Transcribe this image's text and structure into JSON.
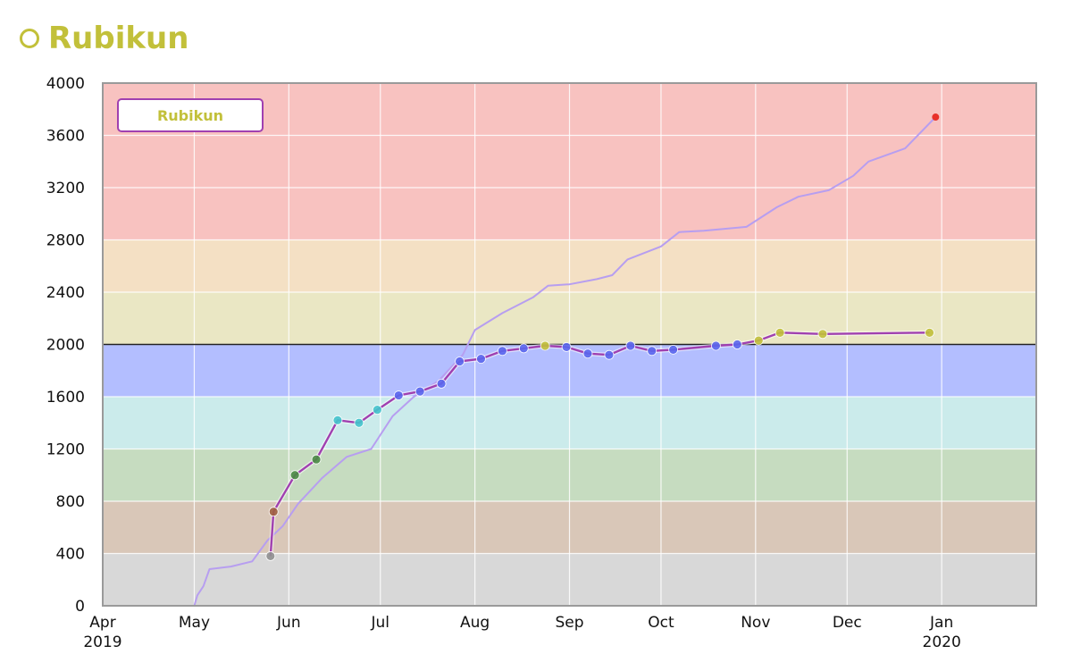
{
  "header": {
    "user_name": "Rubikun",
    "user_icon": "circle-outline-icon",
    "color": "#c2c03a"
  },
  "chart_data": {
    "type": "line",
    "title": "",
    "xlabel": "",
    "ylabel": "",
    "ylim": [
      0,
      4000
    ],
    "xlim": [
      "2019-04-01",
      "2020-02-01"
    ],
    "yticks": [
      0,
      400,
      800,
      1200,
      1600,
      2000,
      2400,
      2800,
      3200,
      3600,
      4000
    ],
    "xticks": [
      {
        "date": "2019-04-01",
        "label": "Apr",
        "sublabel": "2019"
      },
      {
        "date": "2019-05-01",
        "label": "May",
        "sublabel": ""
      },
      {
        "date": "2019-06-01",
        "label": "Jun",
        "sublabel": ""
      },
      {
        "date": "2019-07-01",
        "label": "Jul",
        "sublabel": ""
      },
      {
        "date": "2019-08-01",
        "label": "Aug",
        "sublabel": ""
      },
      {
        "date": "2019-09-01",
        "label": "Sep",
        "sublabel": ""
      },
      {
        "date": "2019-10-01",
        "label": "Oct",
        "sublabel": ""
      },
      {
        "date": "2019-11-01",
        "label": "Nov",
        "sublabel": ""
      },
      {
        "date": "2019-12-01",
        "label": "Dec",
        "sublabel": ""
      },
      {
        "date": "2020-01-01",
        "label": "Jan",
        "sublabel": "2020"
      }
    ],
    "grid": true,
    "legend": {
      "placement": "top-left",
      "entries": [
        "Rubikun"
      ]
    },
    "bands": [
      {
        "from": 0,
        "to": 400,
        "color": "#d8d8d8"
      },
      {
        "from": 400,
        "to": 800,
        "color": "#d9c7b8"
      },
      {
        "from": 800,
        "to": 1200,
        "color": "#c6dcc0"
      },
      {
        "from": 1200,
        "to": 1600,
        "color": "#cbebeb"
      },
      {
        "from": 1600,
        "to": 2000,
        "color": "#b3beff"
      },
      {
        "from": 2000,
        "to": 2400,
        "color": "#eae7c4"
      },
      {
        "from": 2400,
        "to": 2800,
        "color": "#f4e0c4"
      },
      {
        "from": 2800,
        "to": 4000,
        "color": "#f8c2c0"
      }
    ],
    "reference_line": 2000,
    "series": [
      {
        "name": "",
        "kind": "cumulative-line",
        "color": "#b79ef0",
        "end_marker_color": "#e8302a",
        "points": [
          {
            "x": "2019-05-01",
            "y": 0
          },
          {
            "x": "2019-05-02",
            "y": 80
          },
          {
            "x": "2019-05-04",
            "y": 150
          },
          {
            "x": "2019-05-06",
            "y": 280
          },
          {
            "x": "2019-05-13",
            "y": 300
          },
          {
            "x": "2019-05-20",
            "y": 340
          },
          {
            "x": "2019-05-25",
            "y": 500
          },
          {
            "x": "2019-05-30",
            "y": 610
          },
          {
            "x": "2019-06-04",
            "y": 780
          },
          {
            "x": "2019-06-12",
            "y": 980
          },
          {
            "x": "2019-06-20",
            "y": 1140
          },
          {
            "x": "2019-06-28",
            "y": 1200
          },
          {
            "x": "2019-07-05",
            "y": 1450
          },
          {
            "x": "2019-07-12",
            "y": 1600
          },
          {
            "x": "2019-07-20",
            "y": 1720
          },
          {
            "x": "2019-07-28",
            "y": 1920
          },
          {
            "x": "2019-08-01",
            "y": 2110
          },
          {
            "x": "2019-08-10",
            "y": 2240
          },
          {
            "x": "2019-08-20",
            "y": 2360
          },
          {
            "x": "2019-08-25",
            "y": 2450
          },
          {
            "x": "2019-09-01",
            "y": 2460
          },
          {
            "x": "2019-09-10",
            "y": 2500
          },
          {
            "x": "2019-09-15",
            "y": 2530
          },
          {
            "x": "2019-09-20",
            "y": 2650
          },
          {
            "x": "2019-10-01",
            "y": 2750
          },
          {
            "x": "2019-10-07",
            "y": 2860
          },
          {
            "x": "2019-10-15",
            "y": 2870
          },
          {
            "x": "2019-10-29",
            "y": 2900
          },
          {
            "x": "2019-11-08",
            "y": 3050
          },
          {
            "x": "2019-11-15",
            "y": 3130
          },
          {
            "x": "2019-11-25",
            "y": 3180
          },
          {
            "x": "2019-12-03",
            "y": 3290
          },
          {
            "x": "2019-12-08",
            "y": 3400
          },
          {
            "x": "2019-12-20",
            "y": 3500
          },
          {
            "x": "2019-12-30",
            "y": 3740
          }
        ]
      },
      {
        "name": "Rubikun",
        "kind": "rating",
        "color": "#a040b0",
        "points": [
          {
            "x": "2019-05-26",
            "y": 380,
            "color": "#909090"
          },
          {
            "x": "2019-05-27",
            "y": 720,
            "color": "#a06040"
          },
          {
            "x": "2019-06-03",
            "y": 1000,
            "color": "#4a8a44"
          },
          {
            "x": "2019-06-10",
            "y": 1120,
            "color": "#4a8a44"
          },
          {
            "x": "2019-06-17",
            "y": 1420,
            "color": "#44c4cc"
          },
          {
            "x": "2019-06-24",
            "y": 1400,
            "color": "#44c4cc"
          },
          {
            "x": "2019-06-30",
            "y": 1500,
            "color": "#44c4cc"
          },
          {
            "x": "2019-07-07",
            "y": 1610,
            "color": "#5a66ee"
          },
          {
            "x": "2019-07-14",
            "y": 1640,
            "color": "#5a66ee"
          },
          {
            "x": "2019-07-21",
            "y": 1700,
            "color": "#5a66ee"
          },
          {
            "x": "2019-07-27",
            "y": 1870,
            "color": "#5a66ee"
          },
          {
            "x": "2019-08-03",
            "y": 1890,
            "color": "#5a66ee"
          },
          {
            "x": "2019-08-10",
            "y": 1950,
            "color": "#5a66ee"
          },
          {
            "x": "2019-08-17",
            "y": 1970,
            "color": "#5a66ee"
          },
          {
            "x": "2019-08-24",
            "y": 1990,
            "color": "#c2c03a"
          },
          {
            "x": "2019-08-31",
            "y": 1980,
            "color": "#5a66ee"
          },
          {
            "x": "2019-09-07",
            "y": 1930,
            "color": "#5a66ee"
          },
          {
            "x": "2019-09-14",
            "y": 1920,
            "color": "#5a66ee"
          },
          {
            "x": "2019-09-21",
            "y": 1990,
            "color": "#5a66ee"
          },
          {
            "x": "2019-09-28",
            "y": 1950,
            "color": "#5a66ee"
          },
          {
            "x": "2019-10-05",
            "y": 1960,
            "color": "#5a66ee"
          },
          {
            "x": "2019-10-19",
            "y": 1990,
            "color": "#5a66ee"
          },
          {
            "x": "2019-10-26",
            "y": 2000,
            "color": "#5a66ee"
          },
          {
            "x": "2019-11-02",
            "y": 2030,
            "color": "#c2c03a"
          },
          {
            "x": "2019-11-09",
            "y": 2090,
            "color": "#c2c03a"
          },
          {
            "x": "2019-11-23",
            "y": 2080,
            "color": "#c2c03a"
          },
          {
            "x": "2019-12-28",
            "y": 2090,
            "color": "#c2c03a"
          }
        ]
      }
    ]
  }
}
